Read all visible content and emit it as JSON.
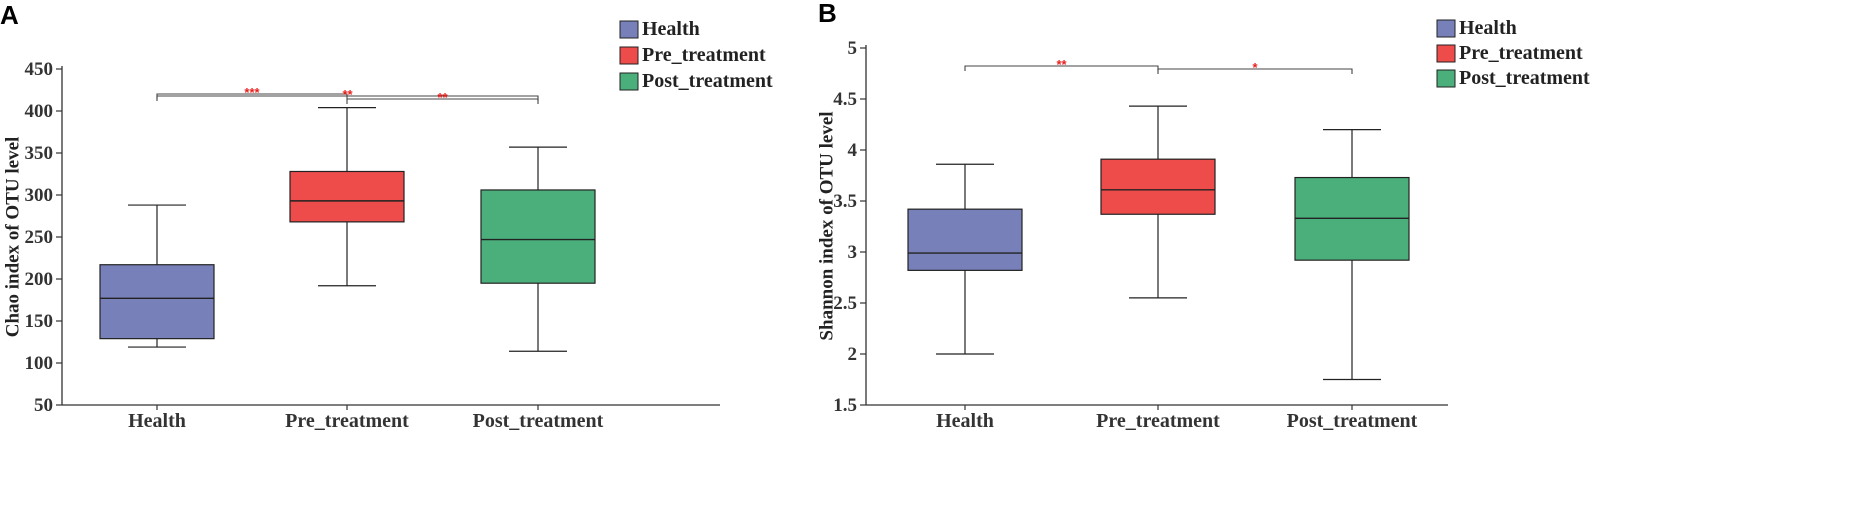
{
  "colors": {
    "health": "#7780b8",
    "pre_treatment": "#ee4b4b",
    "post_treatment": "#4aaf7b",
    "significance": "#e8201e"
  },
  "legend": {
    "items": [
      "Health",
      "Pre_treatment",
      "Post_treatment"
    ]
  },
  "chart_data": [
    {
      "panel_label": "A",
      "type": "boxplot",
      "title": "",
      "xlabel": "",
      "ylabel": "Chao index of OTU level",
      "ylim": [
        50,
        450
      ],
      "yticks": [
        "50",
        "100",
        "150",
        "200",
        "250",
        "300",
        "350",
        "400",
        "450"
      ],
      "categories": [
        "Health",
        "Pre_treatment",
        "Post_treatment"
      ],
      "series": [
        {
          "name": "Health",
          "min": 119,
          "q1": 129,
          "median": 177,
          "q3": 217,
          "max": 288
        },
        {
          "name": "Pre_treatment",
          "min": 192,
          "q1": 268,
          "median": 293,
          "q3": 328,
          "max": 404
        },
        {
          "name": "Post_treatment",
          "min": 114,
          "q1": 195,
          "median": 247,
          "q3": 306,
          "max": 357
        }
      ],
      "significance": [
        {
          "from": 0,
          "to": 1,
          "label": "***"
        },
        {
          "from": 0,
          "to": 2,
          "label": "**"
        },
        {
          "from": 1,
          "to": 2,
          "label": "**"
        }
      ]
    },
    {
      "panel_label": "B",
      "type": "boxplot",
      "title": "",
      "xlabel": "",
      "ylabel": "Shannon index of OTU level",
      "ylim": [
        1.5,
        5
      ],
      "yticks": [
        "1.5",
        "2",
        "2.5",
        "3",
        "3.5",
        "4",
        "4.5",
        "5"
      ],
      "categories": [
        "Health",
        "Pre_treatment",
        "Post_treatment"
      ],
      "series": [
        {
          "name": "Health",
          "min": 2.0,
          "q1": 2.82,
          "median": 2.99,
          "q3": 3.42,
          "max": 3.86
        },
        {
          "name": "Pre_treatment",
          "min": 2.55,
          "q1": 3.37,
          "median": 3.61,
          "q3": 3.91,
          "max": 4.43
        },
        {
          "name": "Post_treatment",
          "min": 1.75,
          "q1": 2.92,
          "median": 3.33,
          "q3": 3.73,
          "max": 4.2
        }
      ],
      "significance": [
        {
          "from": 0,
          "to": 1,
          "label": "**"
        },
        {
          "from": 1,
          "to": 2,
          "label": "*"
        }
      ]
    }
  ]
}
